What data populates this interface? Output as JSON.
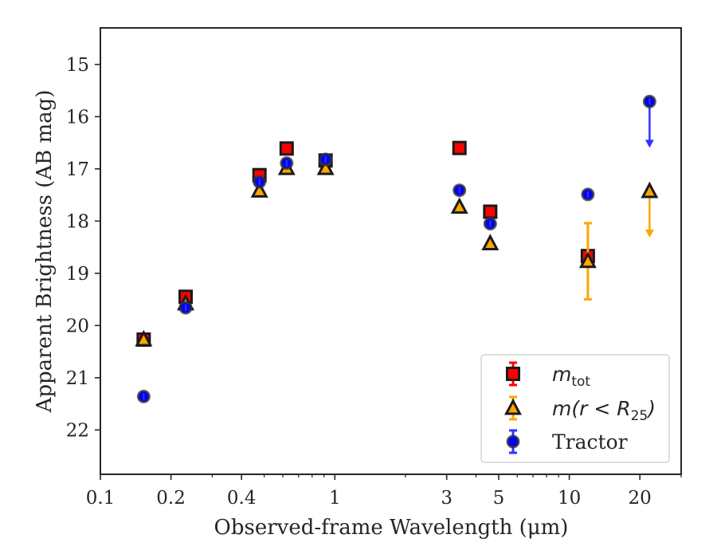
{
  "chart_data": {
    "type": "scatter",
    "xlabel": "Observed-frame Wavelength (μm)",
    "ylabel": "Apparent Brightness (AB mag)",
    "xscale": "log",
    "xlim": [
      0.1,
      30
    ],
    "ylim": [
      22.85,
      14.3
    ],
    "y_inverted": true,
    "x_major_ticks": [
      {
        "value": 0.1,
        "label": "0.1"
      },
      {
        "value": 0.2,
        "label": "0.2"
      },
      {
        "value": 0.4,
        "label": "0.4"
      },
      {
        "value": 1,
        "label": "1"
      },
      {
        "value": 3,
        "label": "3"
      },
      {
        "value": 5,
        "label": "5"
      },
      {
        "value": 10,
        "label": "10"
      },
      {
        "value": 20,
        "label": "20"
      }
    ],
    "x_minor_ticks": [
      0.3,
      0.5,
      0.6,
      0.7,
      0.8,
      0.9,
      2,
      4,
      6,
      7,
      8,
      9,
      30
    ],
    "y_ticks": [
      {
        "value": 15,
        "label": "15"
      },
      {
        "value": 16,
        "label": "16"
      },
      {
        "value": 17,
        "label": "17"
      },
      {
        "value": 18,
        "label": "18"
      },
      {
        "value": 19,
        "label": "19"
      },
      {
        "value": 20,
        "label": "20"
      },
      {
        "value": 21,
        "label": "21"
      },
      {
        "value": 22,
        "label": "22"
      }
    ],
    "legend_position": "lower-right",
    "series": [
      {
        "name": "m_tot",
        "label_main": "m",
        "label_sub": "tot",
        "marker": "square",
        "color": "#ff0000",
        "points": [
          {
            "x": 0.153,
            "y": 20.27
          },
          {
            "x": 0.231,
            "y": 19.45
          },
          {
            "x": 0.477,
            "y": 17.12
          },
          {
            "x": 0.623,
            "y": 16.61
          },
          {
            "x": 0.913,
            "y": 16.84
          },
          {
            "x": 3.4,
            "y": 16.6
          },
          {
            "x": 4.6,
            "y": 17.82
          },
          {
            "x": 12.0,
            "y": 18.67,
            "err": 0.06
          }
        ]
      },
      {
        "name": "m(r<R_25)",
        "label_main": "m(r < R",
        "label_sub": "25",
        "label_tail": ")",
        "marker": "triangle",
        "color": "#ffa500",
        "points": [
          {
            "x": 0.153,
            "y": 20.27
          },
          {
            "x": 0.231,
            "y": 19.58
          },
          {
            "x": 0.477,
            "y": 17.42
          },
          {
            "x": 0.623,
            "y": 16.99
          },
          {
            "x": 0.913,
            "y": 16.99
          },
          {
            "x": 3.4,
            "y": 17.73
          },
          {
            "x": 4.6,
            "y": 18.43
          },
          {
            "x": 12.0,
            "y": 18.77,
            "err": 0.73
          },
          {
            "x": 22.0,
            "y": 17.43,
            "upper_limit": true
          }
        ]
      },
      {
        "name": "Tractor",
        "label_main": "Tractor",
        "marker": "circle",
        "color": "#0000ff",
        "points": [
          {
            "x": 0.153,
            "y": 21.36
          },
          {
            "x": 0.231,
            "y": 19.66
          },
          {
            "x": 0.477,
            "y": 17.25
          },
          {
            "x": 0.623,
            "y": 16.89
          },
          {
            "x": 0.913,
            "y": 16.82
          },
          {
            "x": 3.4,
            "y": 17.41
          },
          {
            "x": 4.6,
            "y": 18.05
          },
          {
            "x": 12.0,
            "y": 17.49
          },
          {
            "x": 22.0,
            "y": 15.71,
            "upper_limit": true
          }
        ]
      }
    ]
  }
}
